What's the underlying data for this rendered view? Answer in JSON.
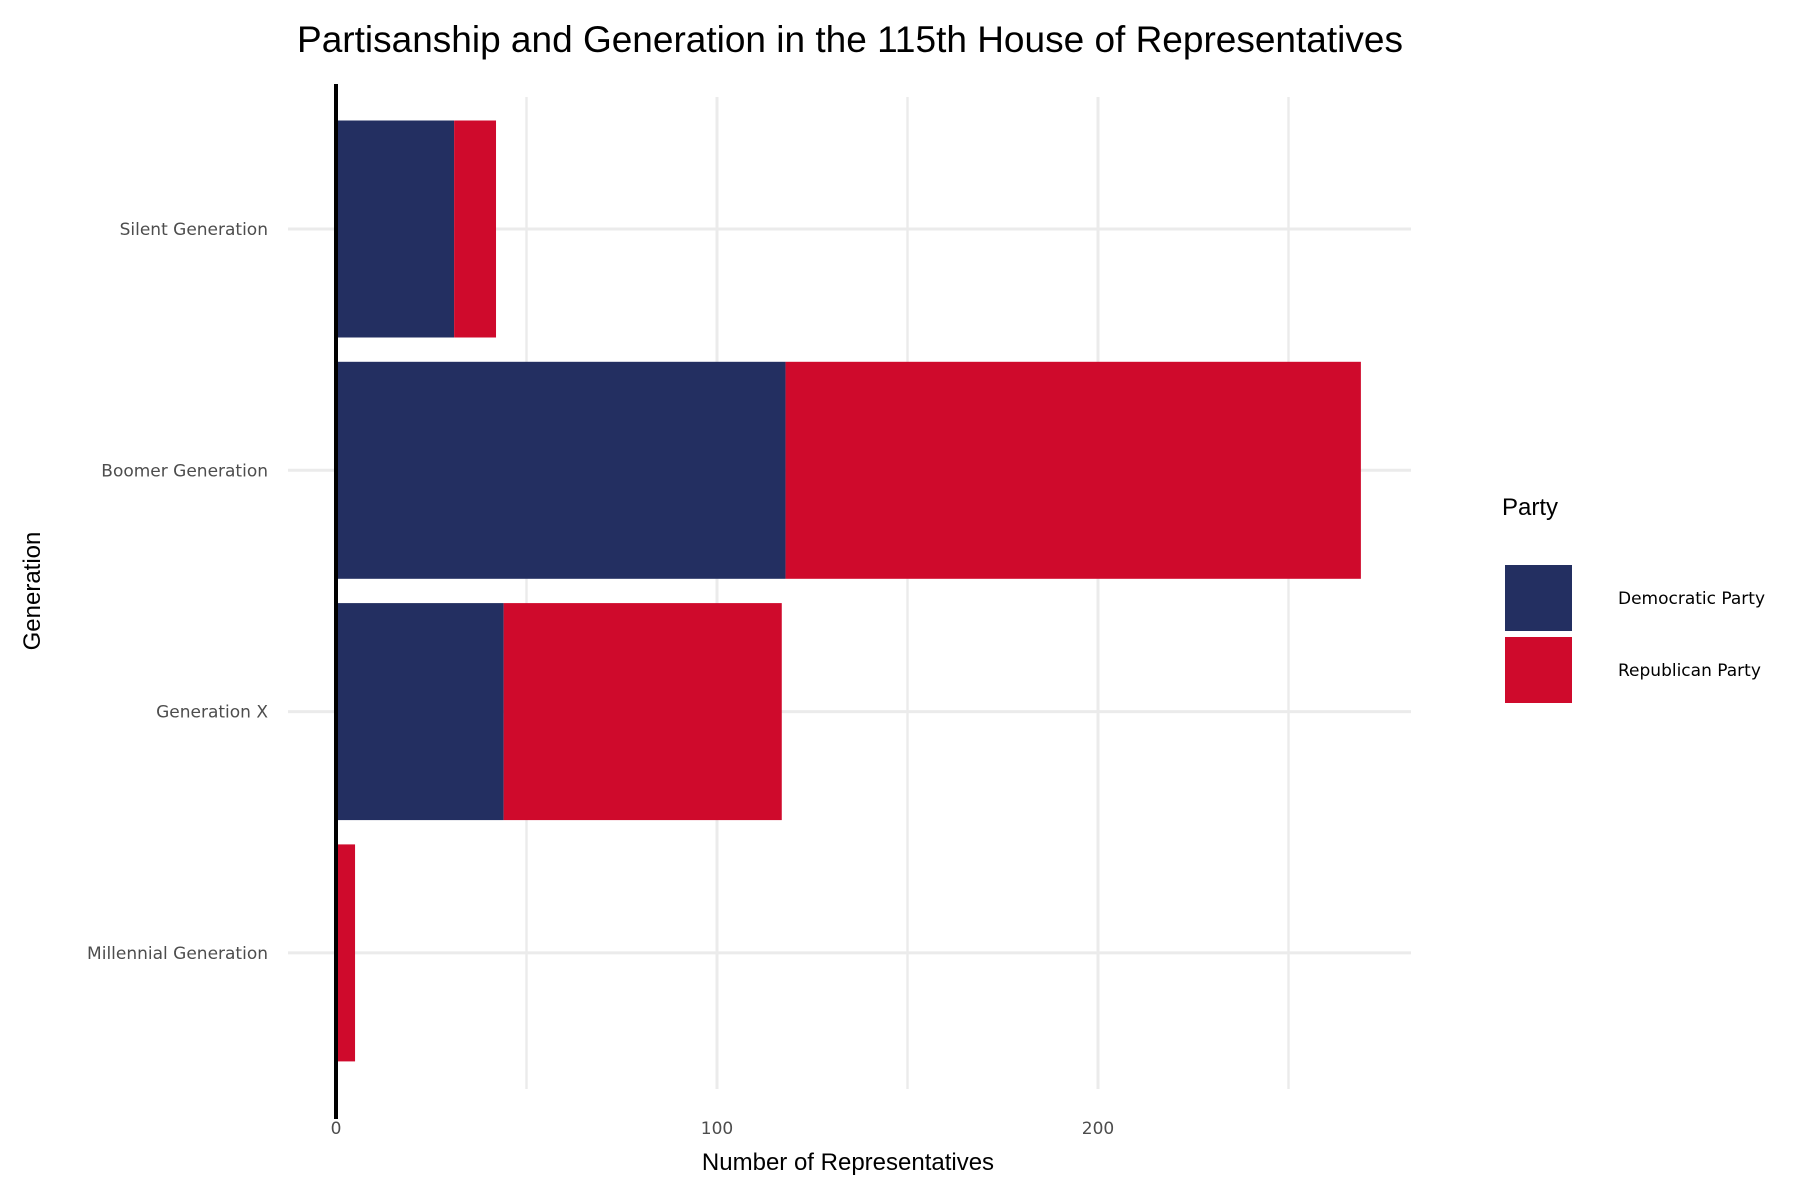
{
  "chart_data": {
    "type": "bar",
    "orientation": "horizontal",
    "stacked": true,
    "title": "Partisanship and Generation in the 115th House of Representatives",
    "xlabel": "Number of Representatives",
    "ylabel": "Generation",
    "xlim": [
      0,
      285
    ],
    "x_ticks": [
      0,
      100,
      200
    ],
    "x_minor_grid": [
      50,
      150,
      250
    ],
    "grid": true,
    "categories": [
      "Silent Generation",
      "Boomer Generation",
      "Generation X",
      "Millennial Generation"
    ],
    "series": [
      {
        "name": "Democratic Party",
        "color": "#232F61",
        "values": [
          31,
          118,
          44,
          0
        ]
      },
      {
        "name": "Republican Party",
        "color": "#CF0A2C",
        "values": [
          11,
          151,
          73,
          5
        ]
      }
    ],
    "legend": {
      "title": "Party",
      "position": "right"
    }
  }
}
